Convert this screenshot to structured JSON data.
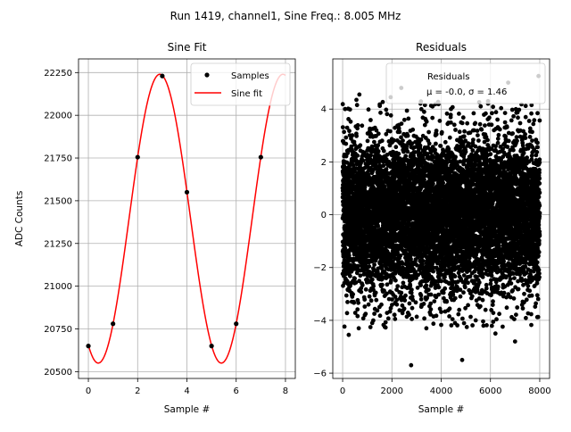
{
  "figure": {
    "suptitle": "Run 1419, channel1, Sine Freq.: 8.005 MHz"
  },
  "chart_data": [
    {
      "type": "line",
      "title": "Sine Fit",
      "xlabel": "Sample #",
      "ylabel": "ADC Counts",
      "xlim": [
        -0.4,
        8.4
      ],
      "ylim": [
        20460,
        22330
      ],
      "xticks": [
        0,
        2,
        4,
        6,
        8
      ],
      "yticks": [
        20500,
        20750,
        21000,
        21250,
        21500,
        21750,
        22000,
        22250
      ],
      "grid": true,
      "legend": {
        "placement": "top-right",
        "entries": [
          "Samples",
          "Sine fit"
        ]
      },
      "series": [
        {
          "name": "Samples",
          "style": "points",
          "color": "#000000",
          "x": [
            0,
            1,
            2,
            3,
            4,
            5,
            6,
            7
          ],
          "y": [
            20650,
            20780,
            21755,
            22230,
            21550,
            20650,
            20780,
            21755
          ]
        },
        {
          "name": "Sine fit",
          "style": "line",
          "color": "#ff0000",
          "fit": {
            "offset": 21395,
            "amplitude": 845,
            "samples_per_cycle": 4.997,
            "peak_at_sample": 2.9
          },
          "x_range": [
            0,
            8
          ]
        }
      ]
    },
    {
      "type": "scatter",
      "title": "Residuals",
      "xlabel": "Sample #",
      "ylabel": "",
      "xlim": [
        -400,
        8400
      ],
      "ylim": [
        -6.2,
        5.9
      ],
      "xticks": [
        0,
        2000,
        4000,
        6000,
        8000
      ],
      "yticks": [
        -6,
        -4,
        -2,
        0,
        2,
        4
      ],
      "grid": true,
      "legend": {
        "placement": "top-right",
        "entries": [
          "Residuals",
          "μ = -0.0, σ = 1.46"
        ]
      },
      "stats": {
        "mu": "-0.0",
        "sigma": "1.46"
      },
      "series": [
        {
          "name": "Residuals",
          "color": "#000000",
          "n_points": 8000,
          "x_range": [
            0,
            8000
          ],
          "mean": 0.0,
          "std": 1.46,
          "extremes": [
            {
              "x": 250,
              "y": -4.55
            },
            {
              "x": 560,
              "y": 4.35
            },
            {
              "x": 680,
              "y": 4.55
            },
            {
              "x": 1950,
              "y": 4.45
            },
            {
              "x": 2380,
              "y": 4.8
            },
            {
              "x": 2780,
              "y": -5.7
            },
            {
              "x": 4850,
              "y": -5.5
            },
            {
              "x": 6720,
              "y": 5.0
            },
            {
              "x": 7950,
              "y": 5.25
            },
            {
              "x": 3650,
              "y": 4.1
            },
            {
              "x": 5900,
              "y": 4.3
            },
            {
              "x": 1200,
              "y": -4.1
            },
            {
              "x": 3400,
              "y": -4.3
            },
            {
              "x": 6200,
              "y": -4.5
            },
            {
              "x": 7000,
              "y": -4.8
            },
            {
              "x": 5400,
              "y": -4.0
            },
            {
              "x": 900,
              "y": -3.8
            },
            {
              "x": 4400,
              "y": 4.0
            }
          ]
        }
      ]
    }
  ]
}
